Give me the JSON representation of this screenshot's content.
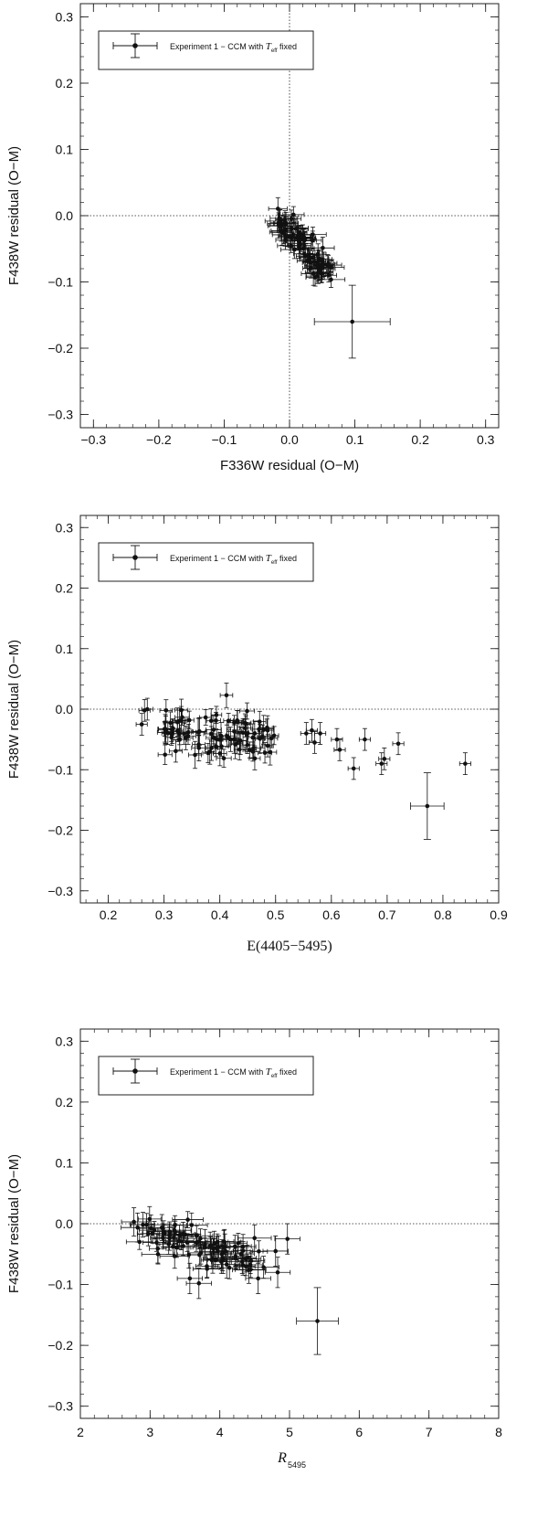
{
  "chart_data": [
    {
      "type": "scatter",
      "xlabel": "F336W residual (O−M)",
      "ylabel": "F438W residual (O−M)",
      "xlim": [
        -0.32,
        0.32
      ],
      "ylim": [
        -0.32,
        0.32
      ],
      "xticks": [
        "−0.3",
        "−0.2",
        "−0.1",
        "0.0",
        "0.1",
        "0.2",
        "0.3"
      ],
      "yticks": [
        "−0.3",
        "−0.2",
        "−0.1",
        "0.0",
        "0.1",
        "0.2",
        "0.3"
      ],
      "legend": {
        "text": "Experiment 1 − CCM  with ",
        "symbol": "T",
        "symbol_sub": "eff",
        "suffix": " fixed",
        "placement": "top-left"
      },
      "reference_lines": {
        "x": 0,
        "y": 0
      },
      "highlight": {
        "x": 0.096,
        "y": -0.16,
        "xerr": 0.058,
        "yerr": 0.055
      },
      "cluster": {
        "x_range": [
          -0.02,
          0.06
        ],
        "trend": "y decreases as x increases",
        "n": 80
      }
    },
    {
      "type": "scatter",
      "xlabel": "E(4405−5495)",
      "ylabel": "F438W residual (O−M)",
      "xlim": [
        0.15,
        0.9
      ],
      "ylim": [
        -0.32,
        0.32
      ],
      "xticks": [
        "0.2",
        "0.3",
        "0.4",
        "0.5",
        "0.6",
        "0.7",
        "0.8",
        "0.9"
      ],
      "yticks": [
        "−0.3",
        "−0.2",
        "−0.1",
        "0.0",
        "0.1",
        "0.2",
        "0.3"
      ],
      "legend": {
        "text": "Experiment 1 − CCM  with ",
        "symbol": "T",
        "symbol_sub": "eff",
        "suffix": " fixed",
        "placement": "top-left"
      },
      "reference_lines": {
        "y": 0
      },
      "highlight": {
        "x": 0.772,
        "y": -0.16,
        "xerr": 0.03,
        "yerr": 0.055
      },
      "points": [
        [
          0.26,
          -0.025
        ],
        [
          0.265,
          -0.002
        ],
        [
          0.27,
          0.0
        ],
        [
          0.555,
          -0.04
        ],
        [
          0.565,
          -0.035
        ],
        [
          0.57,
          -0.055
        ],
        [
          0.58,
          -0.04
        ],
        [
          0.61,
          -0.05
        ],
        [
          0.615,
          -0.067
        ],
        [
          0.64,
          -0.098
        ],
        [
          0.66,
          -0.05
        ],
        [
          0.69,
          -0.09
        ],
        [
          0.695,
          -0.082
        ],
        [
          0.72,
          -0.057
        ],
        [
          0.84,
          -0.09
        ]
      ],
      "cluster": {
        "x_range": [
          0.29,
          0.5
        ],
        "y_range": [
          -0.09,
          0.01
        ],
        "n": 90
      }
    },
    {
      "type": "scatter",
      "xlabel": "R",
      "xlabel_sub": "5495",
      "ylabel": "F438W residual (O−M)",
      "xlim": [
        2,
        8
      ],
      "ylim": [
        -0.32,
        0.32
      ],
      "xticks": [
        "2",
        "3",
        "4",
        "5",
        "6",
        "7",
        "8"
      ],
      "yticks": [
        "−0.3",
        "−0.2",
        "−0.1",
        "0.0",
        "0.1",
        "0.2",
        "0.3"
      ],
      "legend": {
        "text": "Experiment 1 − CCM  with ",
        "symbol": "T",
        "symbol_sub": "eff",
        "suffix": " fixed",
        "placement": "top-left"
      },
      "reference_lines": {
        "y": 0
      },
      "highlight": {
        "x": 5.4,
        "y": -0.16,
        "xerr": 0.3,
        "yerr": 0.055
      },
      "points": [
        [
          4.97,
          -0.025
        ],
        [
          4.8,
          -0.045
        ],
        [
          4.83,
          -0.08
        ],
        [
          4.55,
          -0.09
        ],
        [
          3.57,
          -0.09
        ],
        [
          3.7,
          -0.098
        ]
      ],
      "cluster": {
        "x_range": [
          2.85,
          4.6
        ],
        "trend": "y decreases as x increases",
        "n": 90
      }
    }
  ]
}
